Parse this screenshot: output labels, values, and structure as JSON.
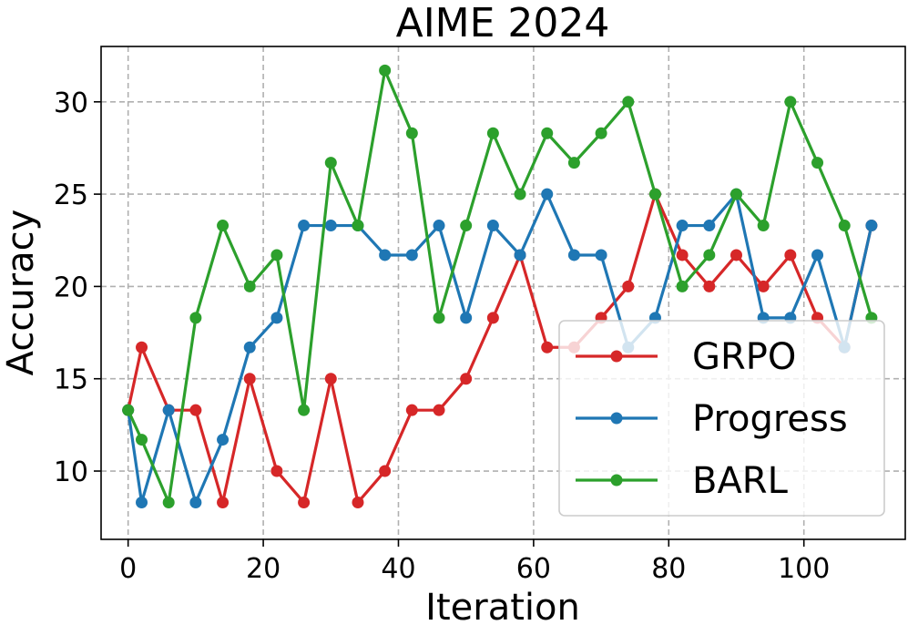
{
  "chart_data": {
    "type": "line",
    "title": "AIME 2024",
    "xlabel": "Iteration",
    "ylabel": "Accuracy",
    "xlim": [
      -4,
      115
    ],
    "ylim": [
      6.3,
      33
    ],
    "xticks": [
      0,
      20,
      40,
      60,
      80,
      100
    ],
    "yticks": [
      10,
      15,
      20,
      25,
      30
    ],
    "grid": true,
    "legend_position": "lower-right",
    "x": [
      0,
      2,
      6,
      10,
      14,
      18,
      22,
      26,
      30,
      34,
      38,
      42,
      46,
      50,
      54,
      58,
      62,
      66,
      70,
      74,
      78,
      82,
      86,
      90,
      94,
      98,
      102,
      106,
      110
    ],
    "series": [
      {
        "name": "GRPO",
        "color": "#d62728",
        "values": [
          13.3,
          16.7,
          13.3,
          13.3,
          8.3,
          15.0,
          10.0,
          8.3,
          15.0,
          8.3,
          10.0,
          13.3,
          13.3,
          15.0,
          18.3,
          21.7,
          16.7,
          16.7,
          18.3,
          20.0,
          25.0,
          21.7,
          20.0,
          21.7,
          20.0,
          21.7,
          18.3,
          16.7,
          23.3
        ]
      },
      {
        "name": "Progress",
        "color": "#1f77b4",
        "values": [
          13.3,
          8.3,
          13.3,
          8.3,
          11.7,
          16.7,
          18.3,
          23.3,
          23.3,
          23.3,
          21.7,
          21.7,
          23.3,
          18.3,
          23.3,
          21.7,
          25.0,
          21.7,
          21.7,
          16.7,
          18.3,
          23.3,
          23.3,
          25.0,
          18.3,
          18.3,
          21.7,
          16.7,
          23.3
        ]
      },
      {
        "name": "BARL",
        "color": "#2ca02c",
        "values": [
          13.3,
          11.7,
          8.3,
          18.3,
          23.3,
          20.0,
          21.7,
          13.3,
          26.7,
          23.3,
          31.7,
          28.3,
          18.3,
          23.3,
          28.3,
          25.0,
          28.3,
          26.7,
          28.3,
          30.0,
          25.0,
          20.0,
          21.7,
          25.0,
          23.3,
          30.0,
          26.7,
          23.3,
          18.3
        ]
      }
    ]
  }
}
